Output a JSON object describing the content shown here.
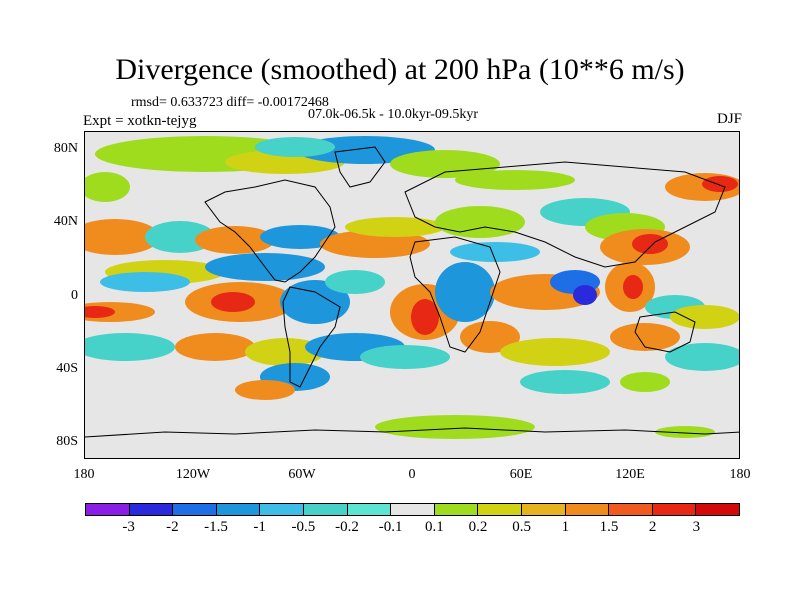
{
  "title": "Divergence (smoothed) at 200 hPa (10**6 m/s)",
  "stats": "rmsd= 0.633723 diff= -0.00172468",
  "period": "07.0k-06.5k - 10.0kyr-09.5kyr",
  "experiment": "Expt = xotkn-tejyg",
  "season": "DJF",
  "lat_labels": [
    "80N",
    "40N",
    "0",
    "40S",
    "80S"
  ],
  "lon_labels": [
    "180",
    "120W",
    "60W",
    "0",
    "60E",
    "120E",
    "180"
  ],
  "colorbar": {
    "labels": [
      "-3",
      "-2",
      "-1.5",
      "-1",
      "-0.5",
      "-0.2",
      "-0.1",
      "0.1",
      "0.2",
      "0.5",
      "1",
      "1.5",
      "2",
      "3"
    ],
    "colors": [
      "#8a1ee6",
      "#2a2adc",
      "#1e6ee6",
      "#1e96dc",
      "#3cbee6",
      "#46d2c8",
      "#5ae6d2",
      "#e6e6e6",
      "#a0dc1e",
      "#d2d214",
      "#e6b41e",
      "#f08c1e",
      "#f05a1e",
      "#e62814",
      "#d20a0a"
    ]
  },
  "map": {
    "background_color": "#e6e6e6",
    "regions": [
      {
        "name": "arctic-green-band",
        "color": "#a0dc1e"
      },
      {
        "name": "arctic-blue",
        "color": "#1e96dc"
      },
      {
        "name": "north-atlantic-cyan",
        "color": "#46d2c8"
      },
      {
        "name": "pacific-orange-band",
        "color": "#f08c1e"
      },
      {
        "name": "east-pacific-red",
        "color": "#e62814"
      },
      {
        "name": "south-atlantic-red",
        "color": "#e62814"
      },
      {
        "name": "indian-ocean-purple",
        "color": "#2a2adc"
      },
      {
        "name": "maritime-red",
        "color": "#e62814"
      },
      {
        "name": "southern-blue-band",
        "color": "#1e96dc"
      },
      {
        "name": "tropical-yellow",
        "color": "#d2d214"
      }
    ]
  }
}
